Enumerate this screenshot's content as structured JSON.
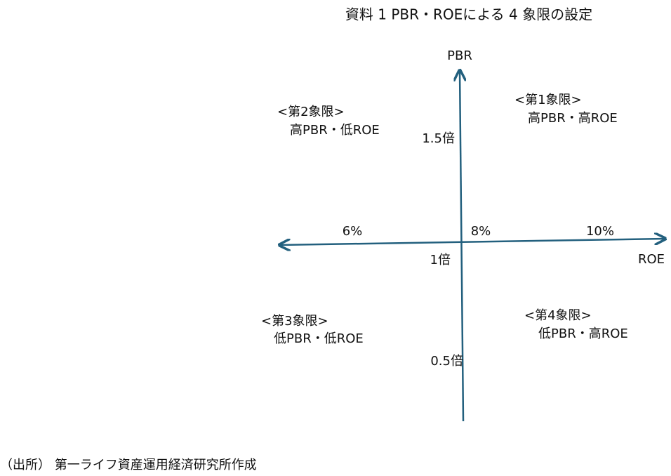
{
  "title": "資料 1 PBR・ROEによる 4 象限の設定",
  "axes": {
    "y_label": "PBR",
    "x_label": "ROE",
    "y_ticks": [
      "1.5倍",
      "1倍",
      "0.5倍"
    ],
    "x_ticks": [
      "6%",
      "8%",
      "10%"
    ]
  },
  "quadrants": [
    {
      "label": "<第1象限>",
      "description": "高PBR・高ROE"
    },
    {
      "label": "<第2象限>",
      "description": "高PBR・低ROE"
    },
    {
      "label": "<第3象限>",
      "description": "低PBR・低ROE"
    },
    {
      "label": "<第4象限>",
      "description": "低PBR・高ROE"
    }
  ],
  "source": "（出所） 第一ライフ資産運用経済研究所作成"
}
